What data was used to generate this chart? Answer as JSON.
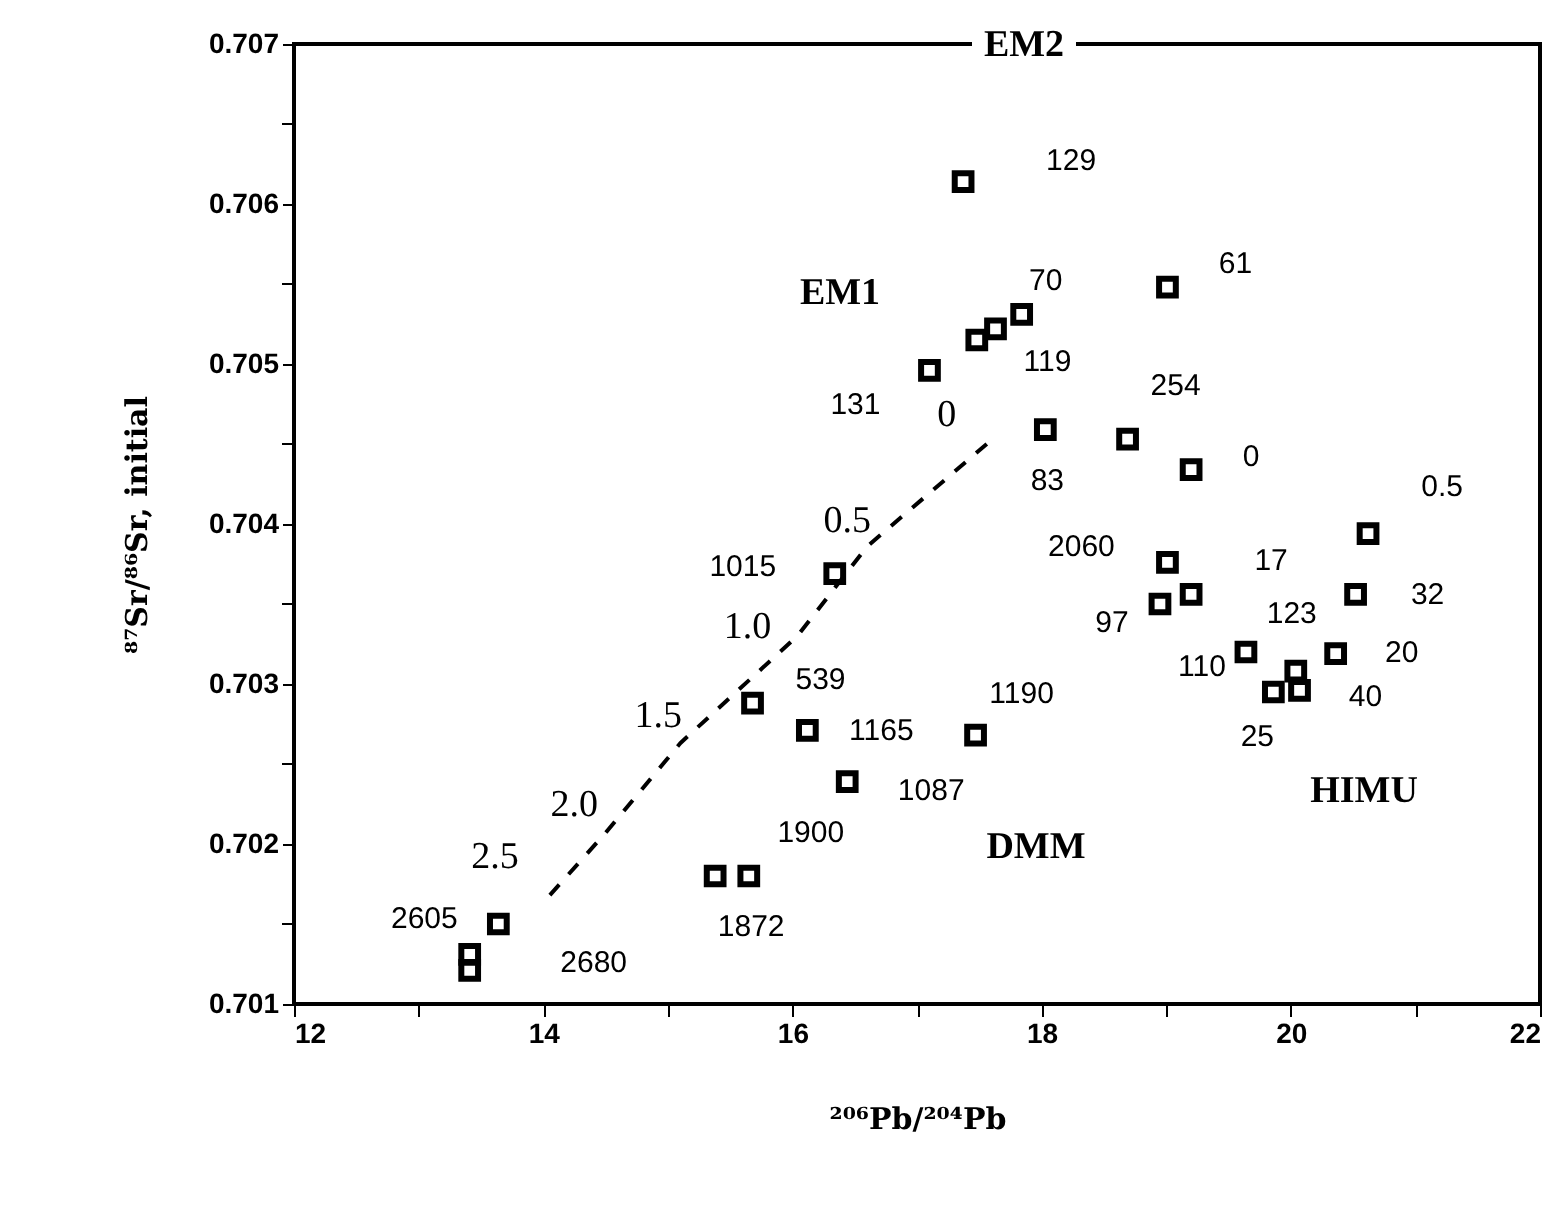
{
  "chart_data": {
    "type": "scatter",
    "xlabel": "²⁰⁶Pb/²⁰⁴Pb",
    "ylabel": "⁸⁷Sr/⁸⁶Sr, initial",
    "xlim": [
      12,
      22
    ],
    "ylim": [
      0.701,
      0.707
    ],
    "xticks": [
      12,
      {
        "value": 13,
        "label": null
      },
      14,
      {
        "value": 15,
        "label": null
      },
      16,
      {
        "value": 17,
        "label": null
      },
      18,
      {
        "value": 19,
        "label": null
      },
      20,
      {
        "value": 21,
        "label": null
      },
      22
    ],
    "yticks": [
      0.701,
      {
        "value": 0.7015,
        "label": null
      },
      0.702,
      {
        "value": 0.7025,
        "label": null
      },
      0.703,
      {
        "value": 0.7035,
        "label": null
      },
      0.704,
      {
        "value": 0.7045,
        "label": null
      },
      0.705,
      {
        "value": 0.7055,
        "label": null
      },
      0.706,
      {
        "value": 0.7065,
        "label": null
      },
      0.707
    ],
    "grid": false,
    "series": [
      {
        "marker": "square",
        "color": "#000000",
        "x": [
          17.37,
          19.01,
          17.84,
          17.63,
          17.48,
          17.1,
          18.03,
          18.69,
          19.2,
          20.62,
          19.01,
          19.2,
          18.95,
          20.52,
          19.64,
          20.36,
          20.04,
          20.07,
          19.86,
          17.47,
          16.34,
          15.68,
          16.12,
          16.44,
          15.65,
          15.38,
          13.64,
          13.41,
          13.41
        ],
        "values": [
          0.70614,
          0.70548,
          0.70531,
          0.70522,
          0.70515,
          0.70496,
          0.70459,
          0.70453,
          0.70434,
          0.70394,
          0.70376,
          0.70356,
          0.7035,
          0.70356,
          0.7032,
          0.70319,
          0.70308,
          0.70296,
          0.70295,
          0.70268,
          0.70369,
          0.70288,
          0.70271,
          0.70239,
          0.7018,
          0.7018,
          0.7015,
          0.70131,
          0.70121
        ]
      },
      {
        "type": "line",
        "marker": "none",
        "line_style": "dashed",
        "color": "#000000",
        "x": [
          17.56,
          16.6,
          16.04,
          15.1,
          14.49,
          14.03
        ],
        "values": [
          0.7045,
          0.70386,
          0.7033,
          0.70263,
          0.70206,
          0.70166
        ]
      }
    ],
    "annotations": [
      {
        "text": "129",
        "x": 17.37,
        "y": 0.70614
      },
      {
        "text": "61",
        "x": 19.01,
        "y": 0.70548
      },
      {
        "text": "70",
        "x": 17.84,
        "y": 0.70531
      },
      {
        "text": "119",
        "x": 17.63,
        "y": 0.70522
      },
      {
        "text": "131",
        "x": 17.1,
        "y": 0.70496
      },
      {
        "text": "83",
        "x": 18.03,
        "y": 0.70459
      },
      {
        "text": "254",
        "x": 18.69,
        "y": 0.70453
      },
      {
        "text": "0",
        "x": 19.2,
        "y": 0.70434
      },
      {
        "text": "0.5",
        "x": 20.62,
        "y": 0.70394
      },
      {
        "text": "2060",
        "x": 19.01,
        "y": 0.70376
      },
      {
        "text": "17",
        "x": 19.2,
        "y": 0.70356
      },
      {
        "text": "97",
        "x": 18.95,
        "y": 0.7035
      },
      {
        "text": "32",
        "x": 20.52,
        "y": 0.70356
      },
      {
        "text": "110",
        "x": 19.64,
        "y": 0.7032
      },
      {
        "text": "20",
        "x": 20.36,
        "y": 0.70319
      },
      {
        "text": "123",
        "x": 20.04,
        "y": 0.70308
      },
      {
        "text": "40",
        "x": 20.07,
        "y": 0.70296
      },
      {
        "text": "25",
        "x": 19.86,
        "y": 0.70295
      },
      {
        "text": "1190",
        "x": 17.47,
        "y": 0.70268
      },
      {
        "text": "1015",
        "x": 16.34,
        "y": 0.70369
      },
      {
        "text": "539",
        "x": 15.68,
        "y": 0.70288
      },
      {
        "text": "1165",
        "x": 16.12,
        "y": 0.70271
      },
      {
        "text": "1087",
        "x": 16.44,
        "y": 0.70239
      },
      {
        "text": "1900",
        "x": 15.65,
        "y": 0.7018
      },
      {
        "text": "1872",
        "x": 15.38,
        "y": 0.7018
      },
      {
        "text": "2605",
        "x": 13.64,
        "y": 0.7015
      },
      {
        "text": "2680",
        "x": 13.41,
        "y": 0.70131
      },
      {
        "text": "0",
        "x": 17.56,
        "y": 0.7045
      },
      {
        "text": "0.5",
        "x": 16.6,
        "y": 0.70386
      },
      {
        "text": "1.0",
        "x": 16.04,
        "y": 0.7033
      },
      {
        "text": "1.5",
        "x": 15.1,
        "y": 0.70263
      },
      {
        "text": "2.0",
        "x": 14.49,
        "y": 0.70206
      },
      {
        "text": "2.5",
        "x": 14.03,
        "y": 0.70166
      },
      "EM2",
      "EM1",
      "DMM",
      "HIMU"
    ]
  }
}
